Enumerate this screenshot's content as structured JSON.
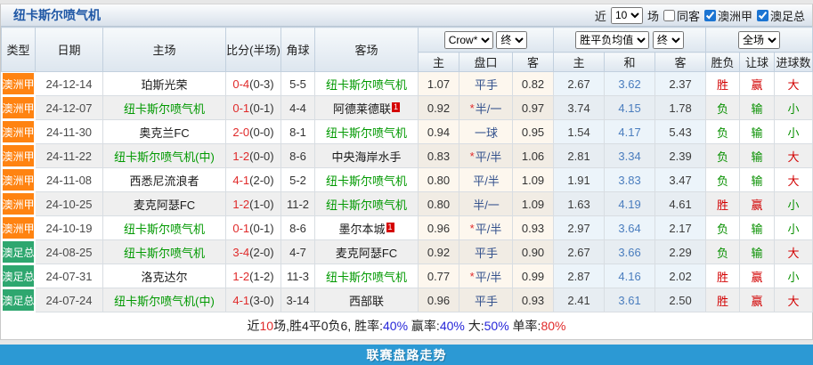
{
  "colors": {
    "league_orange": "#FF8311",
    "league_green": "#2EA76F",
    "team_green": "#009900",
    "red": "#E02A2A",
    "result_green": "#089000",
    "blue_bar": "#2C99D4"
  },
  "panel": {
    "title": "纽卡斯尔喷气机",
    "controls": {
      "recent_label": "近",
      "recent_select": "10",
      "matches_label": "场",
      "checkboxes": [
        {
          "label": "同客",
          "checked": false
        },
        {
          "label": "澳洲甲",
          "checked": true
        },
        {
          "label": "澳足总",
          "checked": true
        }
      ]
    },
    "table": {
      "columns": [
        "类型",
        "日期",
        "主场",
        "比分(半场)",
        "角球",
        "客场"
      ],
      "ah_group": {
        "bookmaker_select": "Crow*",
        "time_select": "终",
        "sub": [
          "主",
          "盘口",
          "客"
        ]
      },
      "eu_group": {
        "type_select": "胜平负均值",
        "time_select": "终",
        "sub": [
          "主",
          "和",
          "客"
        ]
      },
      "res_group": {
        "scope_select": "全场",
        "sub": [
          "胜负",
          "让球",
          "进球数"
        ]
      },
      "rows": [
        {
          "league": "澳洲甲",
          "lc": "orange",
          "date": "24-12-14",
          "home": "珀斯光荣",
          "home_hl": false,
          "ft": "0-4",
          "ht": "(0-3)",
          "corner": "5-5",
          "away": "纽卡斯尔喷气机",
          "away_hl": true,
          "badge": "",
          "ah_home": "1.07",
          "line": "平手",
          "ah_away": "0.82",
          "eu": [
            "2.67",
            "3.62",
            "2.37"
          ],
          "res": [
            "胜",
            "赢",
            "大"
          ],
          "rc": [
            "r",
            "r",
            "r"
          ]
        },
        {
          "league": "澳洲甲",
          "lc": "orange",
          "date": "24-12-07",
          "home": "纽卡斯尔喷气机",
          "home_hl": true,
          "ft": "0-1",
          "ht": "(0-1)",
          "corner": "4-4",
          "away": "阿德莱德联",
          "away_hl": false,
          "badge": "1",
          "ah_home": "0.92",
          "line": "*半/一",
          "ah_away": "0.97",
          "eu": [
            "3.74",
            "4.15",
            "1.78"
          ],
          "res": [
            "负",
            "输",
            "小"
          ],
          "rc": [
            "g",
            "g",
            "g"
          ]
        },
        {
          "league": "澳洲甲",
          "lc": "orange",
          "date": "24-11-30",
          "home": "奥克兰FC",
          "home_hl": false,
          "ft": "2-0",
          "ht": "(0-0)",
          "corner": "8-1",
          "away": "纽卡斯尔喷气机",
          "away_hl": true,
          "badge": "",
          "ah_home": "0.94",
          "line": "一球",
          "ah_away": "0.95",
          "eu": [
            "1.54",
            "4.17",
            "5.43"
          ],
          "res": [
            "负",
            "输",
            "小"
          ],
          "rc": [
            "g",
            "g",
            "g"
          ]
        },
        {
          "league": "澳洲甲",
          "lc": "orange",
          "date": "24-11-22",
          "home": "纽卡斯尔喷气机(中)",
          "home_hl": true,
          "ft": "1-2",
          "ht": "(0-0)",
          "corner": "8-6",
          "away": "中央海岸水手",
          "away_hl": false,
          "badge": "",
          "ah_home": "0.83",
          "line": "*平/半",
          "ah_away": "1.06",
          "eu": [
            "2.81",
            "3.34",
            "2.39"
          ],
          "res": [
            "负",
            "输",
            "大"
          ],
          "rc": [
            "g",
            "g",
            "r"
          ]
        },
        {
          "league": "澳洲甲",
          "lc": "orange",
          "date": "24-11-08",
          "home": "西悉尼流浪者",
          "home_hl": false,
          "ft": "4-1",
          "ht": "(2-0)",
          "corner": "5-2",
          "away": "纽卡斯尔喷气机",
          "away_hl": true,
          "badge": "",
          "ah_home": "0.80",
          "line": "平/半",
          "ah_away": "1.09",
          "eu": [
            "1.91",
            "3.83",
            "3.47"
          ],
          "res": [
            "负",
            "输",
            "大"
          ],
          "rc": [
            "g",
            "g",
            "r"
          ]
        },
        {
          "league": "澳洲甲",
          "lc": "orange",
          "date": "24-10-25",
          "home": "麦克阿瑟FC",
          "home_hl": false,
          "ft": "1-2",
          "ht": "(1-0)",
          "corner": "11-2",
          "away": "纽卡斯尔喷气机",
          "away_hl": true,
          "badge": "",
          "ah_home": "0.80",
          "line": "半/一",
          "ah_away": "1.09",
          "eu": [
            "1.63",
            "4.19",
            "4.61"
          ],
          "res": [
            "胜",
            "赢",
            "小"
          ],
          "rc": [
            "r",
            "r",
            "g"
          ]
        },
        {
          "league": "澳洲甲",
          "lc": "orange",
          "date": "24-10-19",
          "home": "纽卡斯尔喷气机",
          "home_hl": true,
          "ft": "0-1",
          "ht": "(0-1)",
          "corner": "8-6",
          "away": "墨尔本城",
          "away_hl": false,
          "badge": "1",
          "ah_home": "0.96",
          "line": "*平/半",
          "ah_away": "0.93",
          "eu": [
            "2.97",
            "3.64",
            "2.17"
          ],
          "res": [
            "负",
            "输",
            "小"
          ],
          "rc": [
            "g",
            "g",
            "g"
          ]
        },
        {
          "league": "澳足总",
          "lc": "green",
          "date": "24-08-25",
          "home": "纽卡斯尔喷气机",
          "home_hl": true,
          "ft": "3-4",
          "ht": "(2-0)",
          "corner": "4-7",
          "away": "麦克阿瑟FC",
          "away_hl": false,
          "badge": "",
          "ah_home": "0.92",
          "line": "平手",
          "ah_away": "0.90",
          "eu": [
            "2.67",
            "3.66",
            "2.29"
          ],
          "res": [
            "负",
            "输",
            "大"
          ],
          "rc": [
            "g",
            "g",
            "r"
          ]
        },
        {
          "league": "澳足总",
          "lc": "green",
          "date": "24-07-31",
          "home": "洛克达尔",
          "home_hl": false,
          "ft": "1-2",
          "ht": "(1-2)",
          "corner": "11-3",
          "away": "纽卡斯尔喷气机",
          "away_hl": true,
          "badge": "",
          "ah_home": "0.77",
          "line": "*平/半",
          "ah_away": "0.99",
          "eu": [
            "2.87",
            "4.16",
            "2.02"
          ],
          "res": [
            "胜",
            "赢",
            "小"
          ],
          "rc": [
            "r",
            "r",
            "g"
          ]
        },
        {
          "league": "澳足总",
          "lc": "green",
          "date": "24-07-24",
          "home": "纽卡斯尔喷气机(中)",
          "home_hl": true,
          "ft": "4-1",
          "ht": "(3-0)",
          "corner": "3-14",
          "away": "西部联",
          "away_hl": false,
          "badge": "",
          "ah_home": "0.96",
          "line": "平手",
          "ah_away": "0.93",
          "eu": [
            "2.41",
            "3.61",
            "2.50"
          ],
          "res": [
            "胜",
            "赢",
            "大"
          ],
          "rc": [
            "r",
            "r",
            "r"
          ]
        }
      ]
    },
    "summary": {
      "segments": [
        {
          "t": "近",
          "c": "k"
        },
        {
          "t": "10",
          "c": "r"
        },
        {
          "t": "场,胜4平0负6, 胜率:",
          "c": "k"
        },
        {
          "t": "40%",
          "c": "b"
        },
        {
          "t": " 赢率:",
          "c": "k"
        },
        {
          "t": "40%",
          "c": "b"
        },
        {
          "t": " 大:",
          "c": "k"
        },
        {
          "t": "50%",
          "c": "b"
        },
        {
          "t": " 单率:",
          "c": "k"
        },
        {
          "t": "80%",
          "c": "r"
        }
      ]
    }
  },
  "page": {
    "bottom_bar": "联赛盘路走势"
  }
}
